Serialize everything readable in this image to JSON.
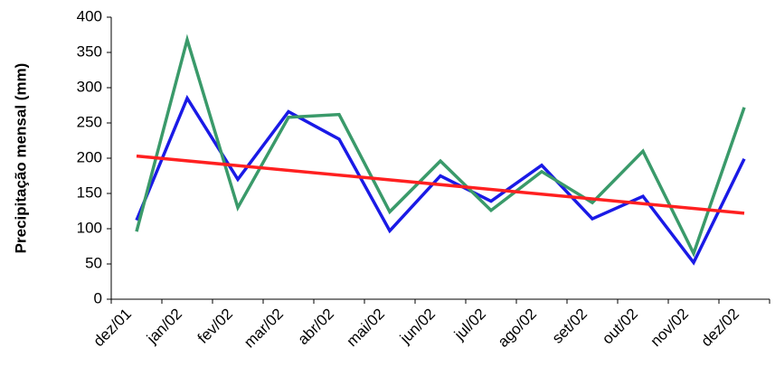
{
  "chart_data": {
    "type": "line",
    "y_label": "Precipitação mensal (mm)",
    "categories": [
      "dez/01",
      "jan/02",
      "fev/02",
      "mar/02",
      "abr/02",
      "mai/02",
      "jun/02",
      "jul/02",
      "ago/02",
      "set/02",
      "out/02",
      "nov/02",
      "dez/02"
    ],
    "series": [
      {
        "color": "#1a1ae6",
        "values": [
          112,
          285,
          170,
          266,
          227,
          97,
          175,
          139,
          190,
          114,
          146,
          52,
          199
        ]
      },
      {
        "color": "#3a9a6a",
        "values": [
          96,
          368,
          130,
          258,
          262,
          124,
          196,
          126,
          181,
          137,
          210,
          65,
          272
        ]
      }
    ],
    "trendline": {
      "color": "#ff2020",
      "values": [
        203,
        122
      ]
    },
    "ylim": [
      0,
      400
    ],
    "yticks": [
      0,
      50,
      100,
      150,
      200,
      250,
      300,
      350,
      400
    ],
    "grid": false
  }
}
